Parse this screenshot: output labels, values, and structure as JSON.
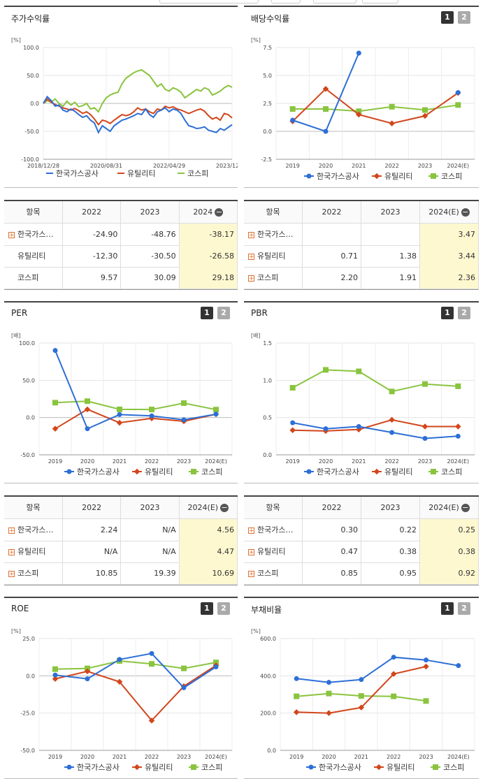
{
  "colors": {
    "kogas": "#2d6fd6",
    "utility": "#d2461c",
    "kospi": "#8ac43f"
  },
  "legend": [
    "한국가스공사",
    "유틸리티",
    "코스피"
  ],
  "panels": {
    "stock": {
      "title": "주가수익률",
      "unit": "[%]"
    },
    "dividend": {
      "title": "배당수익률",
      "unit": "[%]"
    },
    "per": {
      "title": "PER",
      "unit": "[배]"
    },
    "pbr": {
      "title": "PBR",
      "unit": "[배]"
    },
    "roe": {
      "title": "ROE",
      "unit": "[%]"
    },
    "debt": {
      "title": "부채비율",
      "unit": "[%]"
    }
  },
  "buttons": {
    "one": "1",
    "two": "2"
  },
  "tables": {
    "stock": {
      "header": [
        "항목",
        "2022",
        "2023",
        "2024"
      ],
      "rows": [
        {
          "name": "한국가스…",
          "v": [
            "-24.90",
            "-48.76",
            "-38.17"
          ],
          "expand": true
        },
        {
          "name": "유틸리티",
          "v": [
            "-12.30",
            "-30.50",
            "-26.58"
          ],
          "expand": false
        },
        {
          "name": "코스피",
          "v": [
            "9.57",
            "30.09",
            "29.18"
          ],
          "expand": false
        }
      ]
    },
    "dividend": {
      "header": [
        "항목",
        "2022",
        "2023",
        "2024(E)"
      ],
      "rows": [
        {
          "name": "한국가스…",
          "v": [
            "",
            "",
            "3.47"
          ],
          "expand": true
        },
        {
          "name": "유틸리티",
          "v": [
            "0.71",
            "1.38",
            "3.44"
          ],
          "expand": true
        },
        {
          "name": "코스피",
          "v": [
            "2.20",
            "1.91",
            "2.36"
          ],
          "expand": true
        }
      ]
    },
    "per": {
      "header": [
        "항목",
        "2022",
        "2023",
        "2024(E)"
      ],
      "rows": [
        {
          "name": "한국가스…",
          "v": [
            "2.24",
            "N/A",
            "4.56"
          ],
          "expand": true
        },
        {
          "name": "유틸리티",
          "v": [
            "N/A",
            "N/A",
            "4.47"
          ],
          "expand": true
        },
        {
          "name": "코스피",
          "v": [
            "10.85",
            "19.39",
            "10.69"
          ],
          "expand": true
        }
      ]
    },
    "pbr": {
      "header": [
        "항목",
        "2022",
        "2023",
        "2024(E)"
      ],
      "rows": [
        {
          "name": "한국가스…",
          "v": [
            "0.30",
            "0.22",
            "0.25"
          ],
          "expand": true
        },
        {
          "name": "유틸리티",
          "v": [
            "0.47",
            "0.38",
            "0.38"
          ],
          "expand": true
        },
        {
          "name": "코스피",
          "v": [
            "0.85",
            "0.95",
            "0.92"
          ],
          "expand": true
        }
      ]
    }
  },
  "chart_data": [
    {
      "id": "stock",
      "type": "line",
      "title": "주가수익률",
      "yticks": [
        "100.0",
        "50.0",
        "0.0",
        "-50.0",
        "-100.0"
      ],
      "ylim": [
        -100,
        100
      ],
      "xticks": [
        "2018/12/28",
        "2020/08/31",
        "2022/04/29",
        "2023/12/28"
      ],
      "series": [
        {
          "name": "한국가스공사",
          "values": [
            0,
            12,
            5,
            -5,
            -3,
            -12,
            -15,
            -10,
            -14,
            -20,
            -25,
            -22,
            -30,
            -35,
            -52,
            -40,
            -45,
            -50,
            -40,
            -35,
            -30,
            -28,
            -25,
            -22,
            -18,
            -20,
            -10,
            -20,
            -25,
            -15,
            -12,
            -8,
            -15,
            -10,
            -12,
            -18,
            -30,
            -40,
            -42,
            -45,
            -44,
            -42,
            -48,
            -50,
            -52,
            -45,
            -48,
            -43,
            -38
          ]
        },
        {
          "name": "유틸리티",
          "values": [
            0,
            8,
            2,
            -2,
            -5,
            -8,
            -10,
            -12,
            -9,
            -13,
            -18,
            -15,
            -20,
            -28,
            -38,
            -30,
            -32,
            -36,
            -30,
            -25,
            -20,
            -22,
            -20,
            -15,
            -8,
            -12,
            -10,
            -15,
            -18,
            -10,
            -12,
            -5,
            -8,
            -6,
            -10,
            -12,
            -15,
            -18,
            -15,
            -12,
            -10,
            -14,
            -22,
            -28,
            -25,
            -30,
            -18,
            -20,
            -26
          ]
        },
        {
          "name": "코스피",
          "values": [
            0,
            5,
            2,
            8,
            0,
            -5,
            4,
            -3,
            2,
            -6,
            -4,
            0,
            -10,
            -8,
            -15,
            0,
            10,
            15,
            18,
            20,
            35,
            45,
            50,
            55,
            58,
            60,
            55,
            50,
            40,
            30,
            35,
            25,
            22,
            28,
            25,
            20,
            10,
            15,
            20,
            25,
            22,
            28,
            25,
            15,
            18,
            22,
            28,
            32,
            29
          ]
        }
      ]
    },
    {
      "id": "dividend",
      "type": "line",
      "title": "배당수익률",
      "categories": [
        "2019",
        "2020",
        "2021",
        "2022",
        "2023",
        "2024(E)"
      ],
      "yticks": [
        "7.5",
        "5.0",
        "2.5",
        "0.0",
        "-2.5"
      ],
      "ylim": [
        -2.5,
        7.5
      ],
      "series": [
        {
          "name": "한국가스공사",
          "values": [
            1.0,
            0.0,
            7.0,
            null,
            null,
            3.47
          ]
        },
        {
          "name": "유틸리티",
          "values": [
            0.9,
            3.8,
            1.5,
            0.71,
            1.38,
            3.44
          ]
        },
        {
          "name": "코스피",
          "values": [
            2.0,
            2.0,
            1.8,
            2.2,
            1.91,
            2.36
          ]
        }
      ]
    },
    {
      "id": "per",
      "type": "line",
      "title": "PER",
      "categories": [
        "2019",
        "2020",
        "2021",
        "2022",
        "2023",
        "2024(E)"
      ],
      "yticks": [
        "100.0",
        "50.0",
        "0.0",
        "-50.0"
      ],
      "ylim": [
        -50,
        100
      ],
      "series": [
        {
          "name": "한국가스공사",
          "values": [
            90,
            -15,
            4,
            2.24,
            -3,
            4.56
          ]
        },
        {
          "name": "유틸리티",
          "values": [
            -15,
            11,
            -7,
            -1,
            -5,
            4.47
          ]
        },
        {
          "name": "코스피",
          "values": [
            20,
            22,
            11,
            10.85,
            19.39,
            10.69
          ]
        }
      ]
    },
    {
      "id": "pbr",
      "type": "line",
      "title": "PBR",
      "categories": [
        "2019",
        "2020",
        "2021",
        "2022",
        "2023",
        "2024(E)"
      ],
      "yticks": [
        "1.5",
        "1.0",
        "0.5",
        "0.0"
      ],
      "ylim": [
        0,
        1.5
      ],
      "series": [
        {
          "name": "한국가스공사",
          "values": [
            0.43,
            0.35,
            0.38,
            0.3,
            0.22,
            0.25
          ]
        },
        {
          "name": "유틸리티",
          "values": [
            0.33,
            0.32,
            0.34,
            0.47,
            0.38,
            0.38
          ]
        },
        {
          "name": "코스피",
          "values": [
            0.9,
            1.14,
            1.12,
            0.85,
            0.95,
            0.92
          ]
        }
      ]
    },
    {
      "id": "roe",
      "type": "line",
      "title": "ROE",
      "categories": [
        "2019",
        "2020",
        "2021",
        "2022",
        "2023",
        "2024(E)"
      ],
      "yticks": [
        "25.0",
        "0.0",
        "-25.0",
        "-50.0"
      ],
      "ylim": [
        -50,
        25
      ],
      "series": [
        {
          "name": "한국가스공사",
          "values": [
            0.5,
            -2,
            11,
            15,
            -8,
            6
          ]
        },
        {
          "name": "유틸리티",
          "values": [
            -2,
            3,
            -4,
            -30,
            -7,
            7
          ]
        },
        {
          "name": "코스피",
          "values": [
            4.5,
            5,
            10,
            8,
            5,
            9
          ]
        }
      ]
    },
    {
      "id": "debt",
      "type": "line",
      "title": "부채비율",
      "categories": [
        "2019",
        "2020",
        "2021",
        "2022",
        "2023",
        "2024(E)"
      ],
      "yticks": [
        "600.0",
        "400.0",
        "200.0",
        "0.0"
      ],
      "ylim": [
        0,
        600
      ],
      "series": [
        {
          "name": "한국가스공사",
          "values": [
            385,
            365,
            380,
            500,
            485,
            455
          ]
        },
        {
          "name": "유틸리티",
          "values": [
            205,
            200,
            230,
            410,
            450,
            null
          ]
        },
        {
          "name": "코스피",
          "values": [
            290,
            305,
            292,
            290,
            265,
            null
          ]
        }
      ]
    }
  ]
}
